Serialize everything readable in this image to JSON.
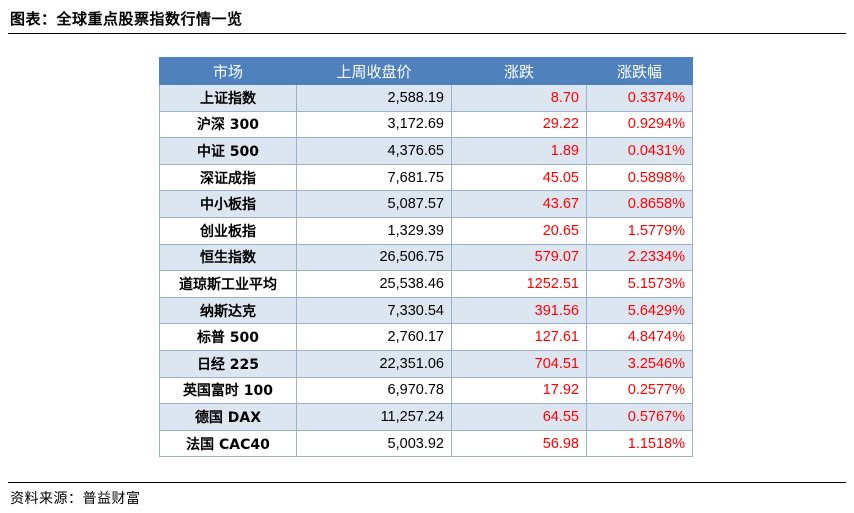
{
  "title": "图表：全球重点股票指数行情一览",
  "source": "资料来源：普益财富",
  "colors": {
    "header_bg": "#4f81bd",
    "header_text": "#ffffff",
    "stripe": "#dce6f1",
    "rise": "#ff0000"
  },
  "table": {
    "headers": [
      "市场",
      "上周收盘价",
      "涨跌",
      "涨跌幅"
    ],
    "rows": [
      {
        "market": "上证指数",
        "close": "2,588.19",
        "change": "8.70",
        "pct": "0.3374%"
      },
      {
        "market": "沪深 300",
        "close": "3,172.69",
        "change": "29.22",
        "pct": "0.9294%"
      },
      {
        "market": "中证 500",
        "close": "4,376.65",
        "change": "1.89",
        "pct": "0.0431%"
      },
      {
        "market": "深证成指",
        "close": "7,681.75",
        "change": "45.05",
        "pct": "0.5898%"
      },
      {
        "market": "中小板指",
        "close": "5,087.57",
        "change": "43.67",
        "pct": "0.8658%"
      },
      {
        "market": "创业板指",
        "close": "1,329.39",
        "change": "20.65",
        "pct": "1.5779%"
      },
      {
        "market": "恒生指数",
        "close": "26,506.75",
        "change": "579.07",
        "pct": "2.2334%"
      },
      {
        "market": "道琼斯工业平均",
        "close": "25,538.46",
        "change": "1252.51",
        "pct": "5.1573%"
      },
      {
        "market": "纳斯达克",
        "close": "7,330.54",
        "change": "391.56",
        "pct": "5.6429%"
      },
      {
        "market": "标普 500",
        "close": "2,760.17",
        "change": "127.61",
        "pct": "4.8474%"
      },
      {
        "market": "日经 225",
        "close": "22,351.06",
        "change": "704.51",
        "pct": "3.2546%"
      },
      {
        "market": "英国富时 100",
        "close": "6,970.78",
        "change": "17.92",
        "pct": "0.2577%"
      },
      {
        "market": "德国 DAX",
        "close": "11,257.24",
        "change": "64.55",
        "pct": "0.5767%"
      },
      {
        "market": "法国 CAC40",
        "close": "5,003.92",
        "change": "56.98",
        "pct": "1.1518%"
      }
    ]
  }
}
